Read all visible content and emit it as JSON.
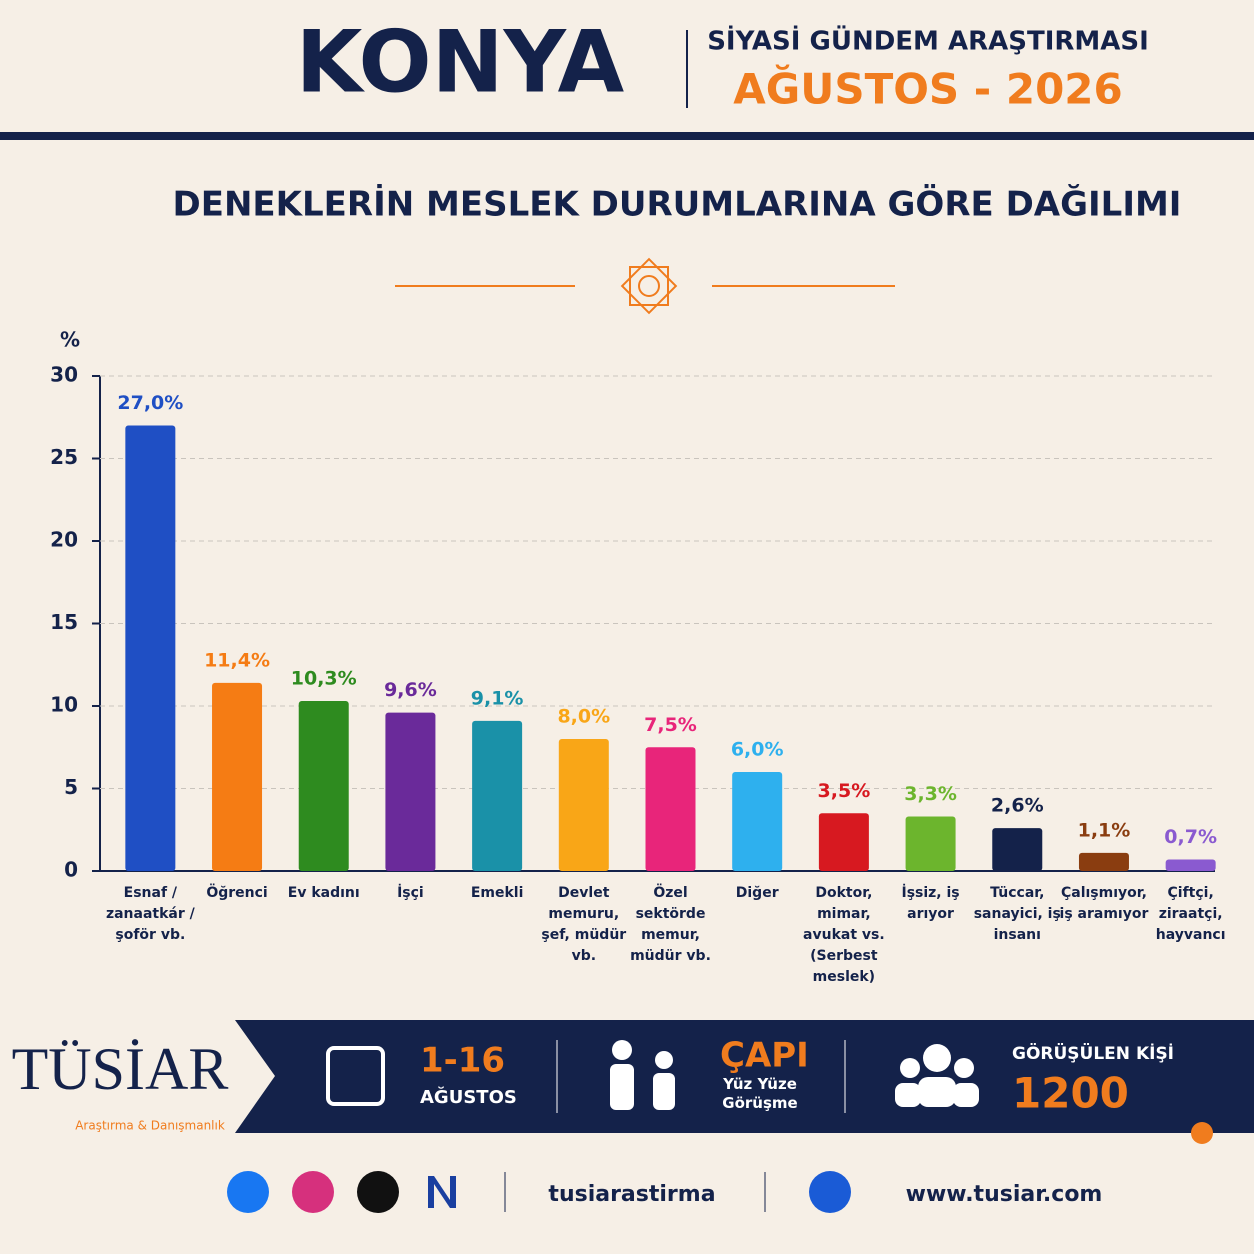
{
  "header": {
    "city": "KONYA",
    "survey": "SİYASİ GÜNDEM ARAŞTIRMASI",
    "period": "AĞUSTOS - 2026"
  },
  "chart_data": {
    "type": "bar",
    "title": "DENEKLERİN MESLEK DURUMLARINA GÖRE DAĞILIMI",
    "ylabel": "%",
    "categories": [
      "Esnaf / zanaatkár / şoför vb.",
      "Öğrenci",
      "Ev kadını",
      "İşçi",
      "Emekli",
      "Devlet memuru, şef, müdür vb.",
      "Özel sektörde memur, müdür vb.",
      "Diğer",
      "Doktor, mimar, avukat vs. (Serbest meslek)",
      "İşsiz, iş arıyor",
      "Tüccar, sanayici, iş insanı",
      "Çalışmıyor, iş aramıyor",
      "Çiftçi, ziraatçi, hayvancı"
    ],
    "values": [
      27.0,
      11.4,
      10.3,
      9.6,
      9.1,
      8.0,
      7.5,
      6.0,
      3.5,
      3.3,
      2.6,
      1.1,
      0.7
    ],
    "value_labels": [
      "27,0%",
      "11,4%",
      "10,3%",
      "9,6%",
      "9,1%",
      "8,0%",
      "7,5%",
      "6,0%",
      "3,5%",
      "3,3%",
      "2,6%",
      "1,1%",
      "0,7%"
    ],
    "colors": [
      "#1f4fc4",
      "#f57c14",
      "#2e8b1f",
      "#6a2a9a",
      "#1a91a8",
      "#f9a617",
      "#e8257a",
      "#2eb0ee",
      "#d71920",
      "#6cb52d",
      "#14224a",
      "#8a3d10",
      "#8a5ad0"
    ],
    "ylim": [
      0,
      30
    ],
    "yticks": [
      0,
      5,
      10,
      15,
      20,
      25,
      30
    ],
    "grid": true
  },
  "footer": {
    "brand": "TÜSİAR",
    "brand_sub": "Araştırma & Danışmanlık",
    "dates": "1-16",
    "month": "AĞUSTOS",
    "scope": "ÇAPI",
    "scope_sub": "Yüz Yüze Görüşme",
    "count_label": "GÖRÜŞÜLEN KİŞİ",
    "count": "1200",
    "handle": "tusiarastirma",
    "website": "www.tusiar.com"
  }
}
